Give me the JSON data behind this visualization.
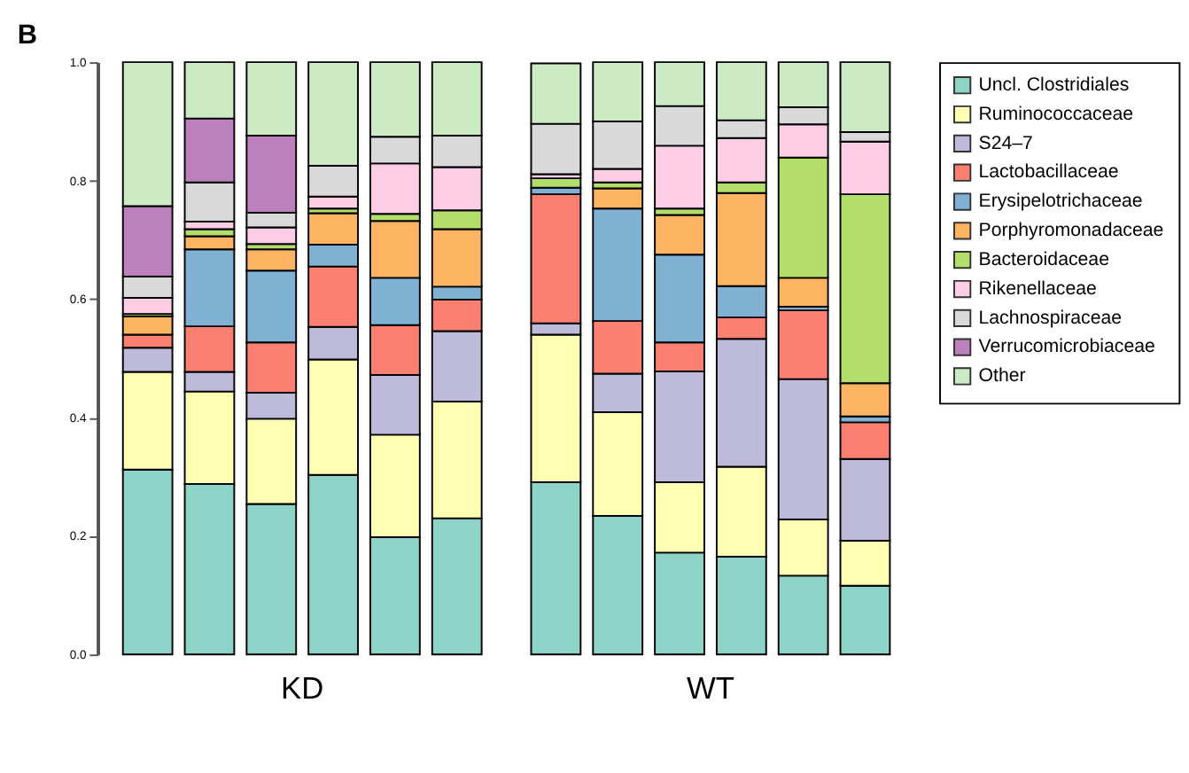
{
  "chart_data": {
    "type": "bar",
    "title": "B",
    "stacked": true,
    "legend": "right",
    "grid": false,
    "categories": [
      null,
      null,
      null,
      null,
      null,
      null,
      null,
      null,
      null,
      null,
      null,
      null
    ],
    "annotations": [
      "KD",
      "WT"
    ],
    "ylim": [
      0,
      1
    ],
    "yticks": [
      {
        "value": 0,
        "label": "0.0"
      },
      {
        "value": 0.2,
        "label": "0.2"
      },
      {
        "value": 0.4,
        "label": "0.4"
      },
      {
        "value": 0.6,
        "label": "0.6"
      },
      {
        "value": 0.8,
        "label": "0.8"
      },
      {
        "value": 1,
        "label": "1.0"
      }
    ],
    "series": [
      {
        "name": "Uncl. Clostridiales",
        "color": "#8dd3c7",
        "values": [
          0.312,
          0.288,
          0.254,
          0.303,
          0.198,
          0.23,
          0.291,
          0.234,
          0.172,
          0.165,
          0.133,
          0.116
        ]
      },
      {
        "name": "Ruminococcaceae",
        "color": "#ffffb3",
        "values": [
          0.165,
          0.156,
          0.144,
          0.195,
          0.173,
          0.197,
          0.249,
          0.175,
          0.119,
          0.152,
          0.095,
          0.076
        ]
      },
      {
        "name": "S24–7",
        "color": "#bebada",
        "values": [
          0.041,
          0.033,
          0.044,
          0.055,
          0.101,
          0.119,
          0.019,
          0.065,
          0.187,
          0.216,
          0.237,
          0.138
        ]
      },
      {
        "name": "Lactobacillaceae",
        "color": "#fb8072",
        "values": [
          0.022,
          0.077,
          0.085,
          0.102,
          0.084,
          0.053,
          0.218,
          0.089,
          0.049,
          0.036,
          0.116,
          0.062
        ]
      },
      {
        "name": "Erysipelotrichaceae",
        "color": "#80b1d3",
        "values": [
          0,
          0.13,
          0.121,
          0.037,
          0.08,
          0.022,
          0.011,
          0.19,
          0.148,
          0.053,
          0.006,
          0.01
        ]
      },
      {
        "name": "Porphyromonadaceae",
        "color": "#fdb462",
        "values": [
          0.031,
          0.022,
          0.036,
          0.053,
          0.096,
          0.097,
          null,
          0.034,
          0.067,
          0.157,
          0.049,
          0.056
        ]
      },
      {
        "name": "Bacteroidaceae",
        "color": "#b3de69",
        "values": [
          0.004,
          0.012,
          0.009,
          0.008,
          0.012,
          0.032,
          0.016,
          0.01,
          0.011,
          0.018,
          0.203,
          0.319
        ]
      },
      {
        "name": "Rikenellaceae",
        "color": "#fccde5",
        "values": [
          0.027,
          0.013,
          0.028,
          0.02,
          0.085,
          0.073,
          0.007,
          0.023,
          0.106,
          0.075,
          0.056,
          0.089
        ]
      },
      {
        "name": "Lachnospiraceae",
        "color": "#d9d9d9",
        "values": [
          0.036,
          0.066,
          0.025,
          0.052,
          0.045,
          0.053,
          0.085,
          0.08,
          0.067,
          0.03,
          0.029,
          0.016
        ]
      },
      {
        "name": "Verrucomicrobiaceae",
        "color": "#bc80bd",
        "values": [
          0.119,
          0.108,
          0.13,
          0,
          0,
          0,
          0,
          0,
          0,
          0,
          0,
          0
        ]
      },
      {
        "name": "Other",
        "color": "#ccebc5",
        "values": [
          0.243,
          0.095,
          0.124,
          0.175,
          0.126,
          0.124,
          0.102,
          0.1,
          0.074,
          0.098,
          0.076,
          0.118
        ]
      }
    ]
  }
}
